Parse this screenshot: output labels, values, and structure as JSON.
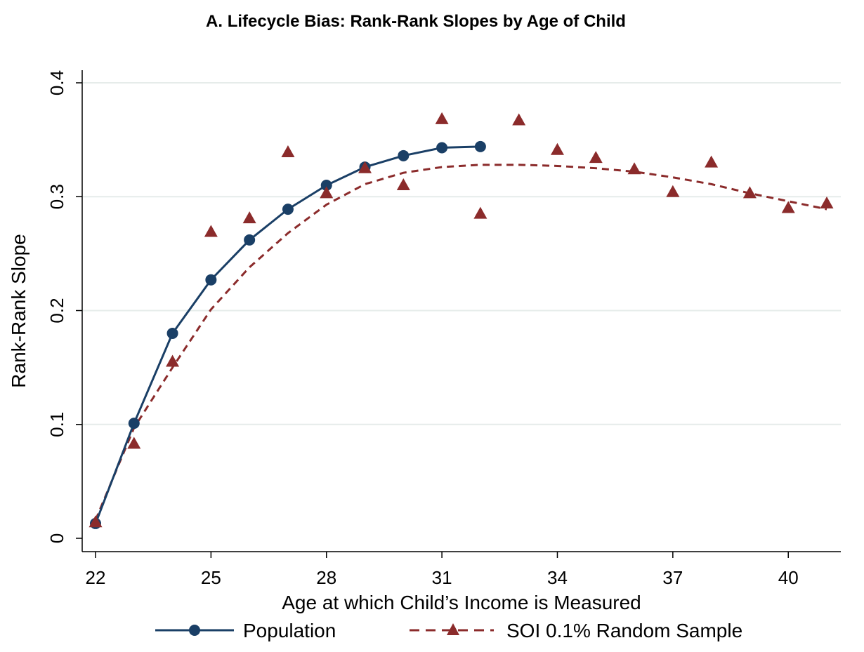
{
  "chart_data": {
    "type": "line",
    "title": "A. Lifecycle Bias: Rank-Rank Slopes by Age of Child",
    "xlabel": "Age at which Child’s Income is Measured",
    "ylabel": "Rank-Rank Slope",
    "xlim": [
      22,
      41
    ],
    "ylim": [
      0,
      0.4
    ],
    "xticks": [
      22,
      25,
      28,
      31,
      34,
      37,
      40
    ],
    "xtick_labels": [
      "22",
      "25",
      "28",
      "31",
      "34",
      "37",
      "40"
    ],
    "yticks": [
      0,
      0.1,
      0.2,
      0.3,
      0.4
    ],
    "ytick_labels": [
      "0",
      "0.1",
      "0.2",
      "0.3",
      "0.4"
    ],
    "grid": "horizontal",
    "legend_position": "bottom",
    "series": [
      {
        "name": "Population",
        "style": "solid line with circle markers",
        "color": "#1a3f66",
        "x": [
          22,
          23,
          24,
          25,
          26,
          27,
          28,
          29,
          30,
          31,
          32
        ],
        "y": [
          0.013,
          0.101,
          0.18,
          0.227,
          0.262,
          0.289,
          0.31,
          0.326,
          0.336,
          0.343,
          0.344
        ]
      },
      {
        "name": "SOI 0.1% Random Sample",
        "style": "triangle markers",
        "color": "#8b2b2b",
        "x": [
          22,
          23,
          24,
          25,
          26,
          27,
          28,
          29,
          30,
          31,
          32,
          33,
          34,
          35,
          36,
          37,
          38,
          39,
          40,
          41
        ],
        "y": [
          0.014,
          0.083,
          0.155,
          0.269,
          0.281,
          0.339,
          0.303,
          0.325,
          0.31,
          0.368,
          0.285,
          0.367,
          0.341,
          0.334,
          0.324,
          0.304,
          0.33,
          0.303,
          0.29,
          0.294
        ]
      },
      {
        "name": "SOI 0.1% Random Sample (fit)",
        "style": "dashed line",
        "color": "#8b2b2b",
        "x": [
          22,
          23,
          24,
          25,
          26,
          27,
          28,
          29,
          30,
          31,
          32,
          33,
          34,
          35,
          36,
          37,
          38,
          39,
          40,
          41
        ],
        "y": [
          0.016,
          0.097,
          0.15,
          0.201,
          0.238,
          0.268,
          0.293,
          0.311,
          0.321,
          0.326,
          0.328,
          0.328,
          0.327,
          0.325,
          0.322,
          0.317,
          0.311,
          0.303,
          0.296,
          0.289
        ]
      }
    ]
  }
}
